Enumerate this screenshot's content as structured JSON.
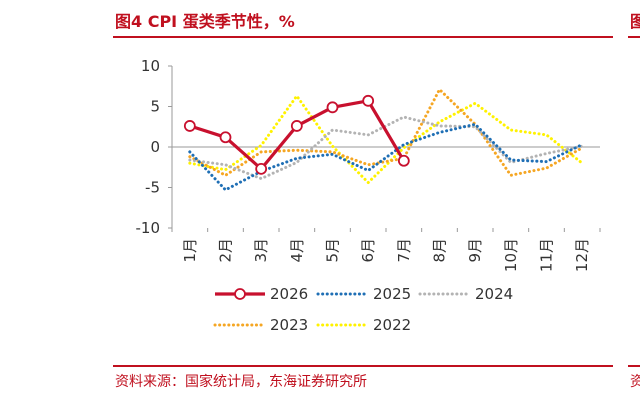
{
  "header": {
    "title": "图4  CPI 蛋类季节性，%"
  },
  "footer": {
    "source": "资料来源：国家统计局，东海证券研究所"
  },
  "colors": {
    "accent": "#c0101f"
  },
  "chart_data": {
    "type": "line",
    "title": "图4  CPI 蛋类季节性，%",
    "xlabel": "",
    "ylabel": "",
    "categories": [
      "1月",
      "2月",
      "3月",
      "4月",
      "5月",
      "6月",
      "7月",
      "8月",
      "9月",
      "10月",
      "11月",
      "12月"
    ],
    "ylim": [
      -10,
      10
    ],
    "yticks": [
      10,
      5,
      0,
      -5,
      -10
    ],
    "grid": false,
    "legend": "bottom",
    "series": [
      {
        "name": "2026",
        "color": "#c8102e",
        "style": "solid-marker",
        "values": [
          2.6,
          1.2,
          -2.7,
          2.6,
          4.9,
          5.7,
          -1.7,
          null,
          null,
          null,
          null,
          null
        ]
      },
      {
        "name": "2025",
        "color": "#1f6fb5",
        "style": "dotted",
        "values": [
          -0.6,
          -5.3,
          -3.0,
          -1.4,
          -0.9,
          -2.9,
          0.3,
          1.8,
          2.8,
          -1.6,
          -1.8,
          0.3
        ]
      },
      {
        "name": "2024",
        "color": "#b3b3b3",
        "style": "dotted",
        "values": [
          -1.6,
          -2.2,
          -3.9,
          -1.9,
          2.1,
          1.5,
          3.7,
          2.6,
          2.5,
          -1.9,
          -0.8,
          0.1
        ]
      },
      {
        "name": "2023",
        "color": "#f5a623",
        "style": "dotted",
        "values": [
          -1.2,
          -3.5,
          -0.6,
          -0.4,
          -0.6,
          -2.2,
          -1.4,
          7.1,
          2.8,
          -3.5,
          -2.6,
          -0.1
        ]
      },
      {
        "name": "2022",
        "color": "#fff200",
        "style": "dotted",
        "values": [
          -2.0,
          -2.8,
          0.2,
          6.3,
          0.1,
          -4.4,
          -0.1,
          3.1,
          5.4,
          2.1,
          1.5,
          -2.0
        ]
      }
    ]
  }
}
